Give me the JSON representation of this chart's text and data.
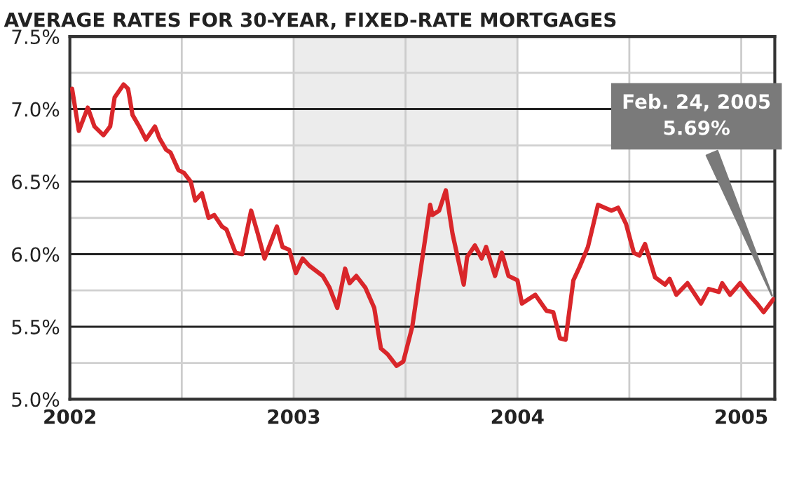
{
  "chart_data": {
    "type": "line",
    "title": "AVERAGE RATES FOR 30-YEAR, FIXED-RATE MORTGAGES",
    "x": [
      2002.01,
      2002.04,
      2002.08,
      2002.11,
      2002.15,
      2002.18,
      2002.2,
      2002.24,
      2002.26,
      2002.28,
      2002.31,
      2002.34,
      2002.38,
      2002.4,
      2002.43,
      2002.45,
      2002.485,
      2002.51,
      2002.54,
      2002.56,
      2002.59,
      2002.62,
      2002.645,
      2002.68,
      2002.7,
      2002.74,
      2002.77,
      2002.81,
      2002.84,
      2002.87,
      2002.925,
      2002.95,
      2002.98,
      2003.01,
      2003.04,
      2003.07,
      2003.13,
      2003.16,
      2003.195,
      2003.23,
      2003.25,
      2003.28,
      2003.32,
      2003.36,
      2003.39,
      2003.42,
      2003.46,
      2003.49,
      2003.53,
      2003.57,
      2003.61,
      2003.62,
      2003.65,
      2003.68,
      2003.71,
      2003.73,
      2003.76,
      2003.775,
      2003.81,
      2003.84,
      2003.86,
      2003.9,
      2003.93,
      2003.96,
      2004.0,
      2004.02,
      2004.08,
      2004.13,
      2004.16,
      2004.19,
      2004.215,
      2004.25,
      2004.28,
      2004.315,
      2004.36,
      2004.39,
      2004.42,
      2004.45,
      2004.485,
      2004.52,
      2004.545,
      2004.57,
      2004.615,
      2004.66,
      2004.68,
      2004.71,
      2004.76,
      2004.82,
      2004.855,
      2004.9,
      2004.915,
      2004.95,
      2004.995,
      2005.04,
      2005.07,
      2005.1,
      2005.144
    ],
    "series": [
      {
        "color": "#d9262a",
        "values": [
          7.14,
          6.85,
          7.01,
          6.88,
          6.82,
          6.88,
          7.08,
          7.17,
          7.14,
          6.96,
          6.88,
          6.79,
          6.88,
          6.8,
          6.72,
          6.7,
          6.58,
          6.56,
          6.5,
          6.37,
          6.42,
          6.25,
          6.27,
          6.19,
          6.17,
          6.01,
          6.0,
          6.3,
          6.14,
          5.97,
          6.19,
          6.05,
          6.03,
          5.87,
          5.97,
          5.92,
          5.85,
          5.77,
          5.63,
          5.9,
          5.8,
          5.85,
          5.77,
          5.63,
          5.35,
          5.31,
          5.23,
          5.26,
          5.5,
          5.92,
          6.34,
          6.27,
          6.3,
          6.44,
          6.14,
          6.0,
          5.79,
          5.98,
          6.06,
          5.97,
          6.05,
          5.85,
          6.01,
          5.85,
          5.82,
          5.66,
          5.72,
          5.61,
          5.6,
          5.42,
          5.41,
          5.82,
          5.92,
          6.05,
          6.34,
          6.32,
          6.3,
          6.32,
          6.21,
          6.01,
          5.99,
          6.07,
          5.84,
          5.79,
          5.83,
          5.72,
          5.8,
          5.66,
          5.76,
          5.74,
          5.8,
          5.72,
          5.8,
          5.71,
          5.66,
          5.6,
          5.69
        ]
      }
    ],
    "xlim": [
      2002.0,
      2005.15
    ],
    "xticks": [
      {
        "value": 2002,
        "label": "2002"
      },
      {
        "value": 2002.5,
        "label": null
      },
      {
        "value": 2003,
        "label": "2003"
      },
      {
        "value": 2003.5,
        "label": null
      },
      {
        "value": 2004,
        "label": "2004"
      },
      {
        "value": 2004.5,
        "label": null
      },
      {
        "value": 2005,
        "label": "2005"
      }
    ],
    "ylim": [
      5.0,
      7.5
    ],
    "yticks": [
      {
        "value": 5.0,
        "label": "5.0%"
      },
      {
        "value": 5.25,
        "label": null
      },
      {
        "value": 5.5,
        "label": "5.5%"
      },
      {
        "value": 5.75,
        "label": null
      },
      {
        "value": 6.0,
        "label": "6.0%"
      },
      {
        "value": 6.25,
        "label": null
      },
      {
        "value": 6.5,
        "label": "6.5%"
      },
      {
        "value": 6.75,
        "label": null
      },
      {
        "value": 7.0,
        "label": "7.0%"
      },
      {
        "value": 7.25,
        "label": null
      },
      {
        "value": 7.5,
        "label": "7.5%"
      }
    ],
    "bands": [
      {
        "axis": "x",
        "from": 2003,
        "to": 2004,
        "color": "#ececec"
      }
    ],
    "annotations": [
      {
        "text": "Feb. 24, 2005\n5.69%",
        "x": 2005.144,
        "y": 5.69
      }
    ],
    "grid": true,
    "legend": false,
    "marker": "none",
    "line_style": "solid"
  }
}
